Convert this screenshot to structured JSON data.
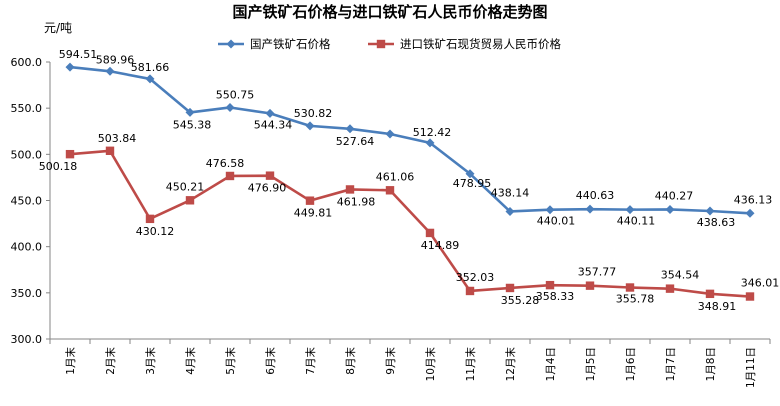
{
  "chart_data": {
    "type": "line",
    "title": "国产铁矿石价格与进口铁矿石人民币价格走势图",
    "ylabel": "元/吨",
    "xlabel": "",
    "ylim": [
      300,
      600
    ],
    "yticks": [
      "300.0",
      "350.0",
      "400.0",
      "450.0",
      "500.0",
      "550.0",
      "600.0"
    ],
    "categories": [
      "1月末",
      "2月末",
      "3月末",
      "4月末",
      "5月末",
      "6月末",
      "7月末",
      "8月末",
      "9月末",
      "10月末",
      "11月末",
      "12月末",
      "1月4日",
      "1月5日",
      "1月6日",
      "1月7日",
      "1月8日",
      "1月11日"
    ],
    "legend_position": "top",
    "grid": false,
    "series": [
      {
        "name": "国产铁矿石价格",
        "color": "#4a7ebb",
        "marker": "diamond",
        "values": [
          594.51,
          589.96,
          581.66,
          545.38,
          550.75,
          544.34,
          530.82,
          527.64,
          522.0,
          512.42,
          478.95,
          438.14,
          440.01,
          440.63,
          440.11,
          440.27,
          438.63,
          436.13
        ],
        "labels": [
          "594.51",
          "589.96",
          "581.66",
          "545.38",
          "550.75",
          "544.34",
          "530.82",
          "527.64",
          "",
          "512.42",
          "478.95",
          "438.14",
          "440.01",
          "440.63",
          "440.11",
          "440.27",
          "438.63",
          "436.13"
        ]
      },
      {
        "name": "进口铁矿石现货贸易人民币价格",
        "color": "#be4b48",
        "marker": "square",
        "values": [
          500.18,
          503.84,
          430.12,
          450.21,
          476.58,
          476.9,
          449.81,
          461.98,
          461.06,
          414.89,
          352.03,
          355.28,
          358.33,
          357.77,
          355.78,
          354.54,
          348.91,
          346.01
        ],
        "labels": [
          "500.18",
          "503.84",
          "430.12",
          "450.21",
          "476.58",
          "476.90",
          "449.81",
          "461.98",
          "461.06",
          "414.89",
          "352.03",
          "355.28",
          "358.33",
          "357.77",
          "355.78",
          "354.54",
          "348.91",
          "346.01"
        ]
      }
    ]
  }
}
